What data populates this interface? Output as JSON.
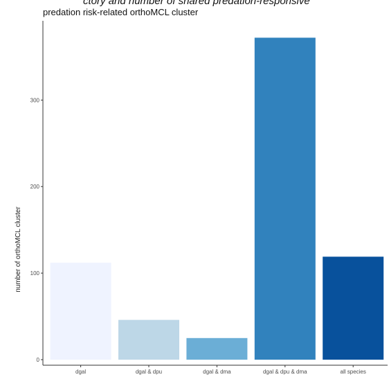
{
  "chart_data": {
    "type": "bar",
    "title": "predation risk-related orthoMCL cluster",
    "clipped_heading": "ctory and number of shared predation-responsive",
    "xlabel": "",
    "ylabel": "number of orthoMCL cluster",
    "categories": [
      "dgal",
      "dgal & dpu",
      "dgal & dma",
      "dgal & dpu & dma",
      "all species"
    ],
    "values": [
      112,
      46,
      25,
      372,
      119
    ],
    "ylim": [
      0,
      385
    ],
    "yticks": [
      0,
      100,
      200,
      300
    ],
    "colors": [
      "#eff3ff",
      "#bdd7e7",
      "#6baed6",
      "#3182bd",
      "#08519c"
    ],
    "grid": false,
    "legend": "none"
  }
}
